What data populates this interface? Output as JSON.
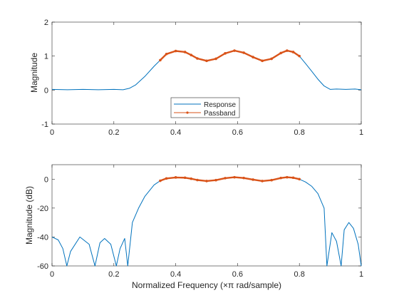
{
  "colors": {
    "response": "#0072BD",
    "passband": "#D95319",
    "axis": "#262626"
  },
  "legend": {
    "entries": [
      "Response",
      "Passband"
    ],
    "location": "bottom-center of top plot"
  },
  "chart_data": [
    {
      "type": "line",
      "ylabel": "Magnitude",
      "xlabel": "",
      "xlim": [
        0,
        1
      ],
      "ylim": [
        -1,
        2
      ],
      "xticks": [
        "0",
        "0.2",
        "0.4",
        "0.6",
        "0.8",
        "1"
      ],
      "yticks": [
        "-1",
        "0",
        "1",
        "2"
      ],
      "series": [
        {
          "name": "Response",
          "x": [
            0,
            0.05,
            0.1,
            0.15,
            0.2,
            0.23,
            0.25,
            0.27,
            0.3,
            0.33,
            0.35,
            0.37,
            0.4,
            0.43,
            0.45,
            0.47,
            0.5,
            0.53,
            0.56,
            0.59,
            0.62,
            0.65,
            0.68,
            0.71,
            0.74,
            0.76,
            0.78,
            0.8,
            0.82,
            0.84,
            0.86,
            0.88,
            0.9,
            0.92,
            0.95,
            0.98,
            1.0
          ],
          "y": [
            0.02,
            0.01,
            0.02,
            0.01,
            0.02,
            0.01,
            0.05,
            0.15,
            0.4,
            0.7,
            0.88,
            1.06,
            1.15,
            1.12,
            1.03,
            0.93,
            0.86,
            0.92,
            1.08,
            1.16,
            1.1,
            0.97,
            0.86,
            0.92,
            1.09,
            1.16,
            1.12,
            1.0,
            0.78,
            0.55,
            0.32,
            0.12,
            0.02,
            0.03,
            0.02,
            0.03,
            0.01
          ]
        },
        {
          "name": "Passband",
          "x": [
            0.35,
            0.37,
            0.4,
            0.43,
            0.45,
            0.47,
            0.5,
            0.53,
            0.56,
            0.59,
            0.62,
            0.65,
            0.68,
            0.71,
            0.74,
            0.76,
            0.78,
            0.8
          ],
          "y": [
            0.88,
            1.06,
            1.15,
            1.12,
            1.03,
            0.93,
            0.86,
            0.92,
            1.08,
            1.16,
            1.1,
            0.97,
            0.86,
            0.92,
            1.09,
            1.16,
            1.12,
            1.0
          ]
        }
      ]
    },
    {
      "type": "line",
      "ylabel": "Magnitude (dB)",
      "xlabel": "Normalized  Frequency  (×π  rad/sample)",
      "xlim": [
        0,
        1
      ],
      "ylim": [
        -60,
        10
      ],
      "xticks": [
        "0",
        "0.2",
        "0.4",
        "0.6",
        "0.8",
        "1"
      ],
      "yticks": [
        "-60",
        "-40",
        "-20",
        "0"
      ],
      "series": [
        {
          "name": "Response",
          "x": [
            0,
            0.02,
            0.035,
            0.048,
            0.06,
            0.09,
            0.12,
            0.139,
            0.155,
            0.17,
            0.19,
            0.208,
            0.22,
            0.235,
            0.245,
            0.26,
            0.28,
            0.3,
            0.33,
            0.35,
            0.37,
            0.4,
            0.43,
            0.45,
            0.47,
            0.5,
            0.53,
            0.56,
            0.59,
            0.62,
            0.65,
            0.68,
            0.71,
            0.74,
            0.76,
            0.78,
            0.8,
            0.82,
            0.84,
            0.86,
            0.88,
            0.889,
            0.905,
            0.92,
            0.935,
            0.945,
            0.96,
            0.975,
            0.99,
            1.0
          ],
          "y": [
            -40,
            -42,
            -48,
            -60,
            -50,
            -40,
            -45,
            -60,
            -44,
            -41,
            -45,
            -60,
            -48,
            -41,
            -60,
            -30,
            -20,
            -12,
            -4,
            -1.1,
            0.5,
            1.2,
            1.0,
            0.3,
            -0.6,
            -1.3,
            -0.7,
            0.7,
            1.3,
            0.8,
            -0.3,
            -1.3,
            -0.7,
            0.8,
            1.3,
            1.0,
            0,
            -2,
            -5,
            -10,
            -20,
            -60,
            -37,
            -43,
            -60,
            -35,
            -30,
            -34,
            -45,
            -60
          ]
        },
        {
          "name": "Passband",
          "x": [
            0.35,
            0.37,
            0.4,
            0.43,
            0.45,
            0.47,
            0.5,
            0.53,
            0.56,
            0.59,
            0.62,
            0.65,
            0.68,
            0.71,
            0.74,
            0.76,
            0.78,
            0.8
          ],
          "y": [
            -1.1,
            0.5,
            1.2,
            1.0,
            0.3,
            -0.6,
            -1.3,
            -0.7,
            0.7,
            1.3,
            0.8,
            -0.3,
            -1.3,
            -0.7,
            0.8,
            1.3,
            1.0,
            0
          ]
        }
      ]
    }
  ]
}
